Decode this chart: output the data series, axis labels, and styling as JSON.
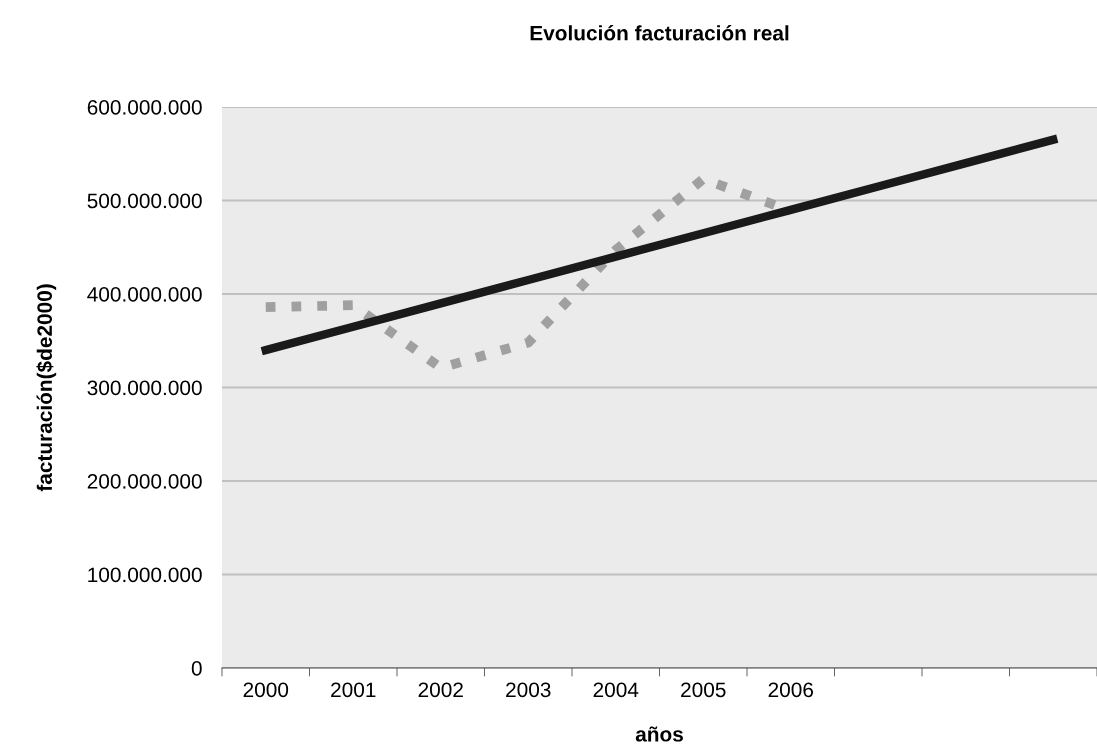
{
  "chart_data": {
    "type": "line",
    "title": "Evolución facturación real",
    "xlabel": "años",
    "ylabel": "facturación($de2000)",
    "categories": [
      "2000",
      "2001",
      "2002",
      "2003",
      "2004",
      "2005",
      "2006",
      null,
      null,
      null
    ],
    "series": [
      {
        "color": "#a0a0a0",
        "line_style": "dotted",
        "values": [
          386000000,
          388000000,
          321000000,
          348000000,
          447000000,
          523000000,
          489000000,
          null,
          null,
          null
        ]
      },
      {
        "color": "#1a1a1a",
        "line_style": "solid",
        "values": [
          340000000,
          365000000,
          390000000,
          415000000,
          440000000,
          465000000,
          490000000,
          515000000,
          540000000,
          565000000
        ]
      }
    ],
    "ylim": [
      0,
      600000000
    ],
    "yticks": [
      0,
      {
        "value": 100000000,
        "label": "100.000.000"
      },
      {
        "value": 200000000,
        "label": "200.000.000"
      },
      {
        "value": 300000000,
        "label": "300.000.000"
      },
      {
        "value": 400000000,
        "label": "400.000.000"
      },
      {
        "value": 500000000,
        "label": "500.000.000"
      },
      {
        "value": 600000000,
        "label": "600.000.000"
      }
    ],
    "grid": "y",
    "legend": false,
    "marker": "none"
  }
}
